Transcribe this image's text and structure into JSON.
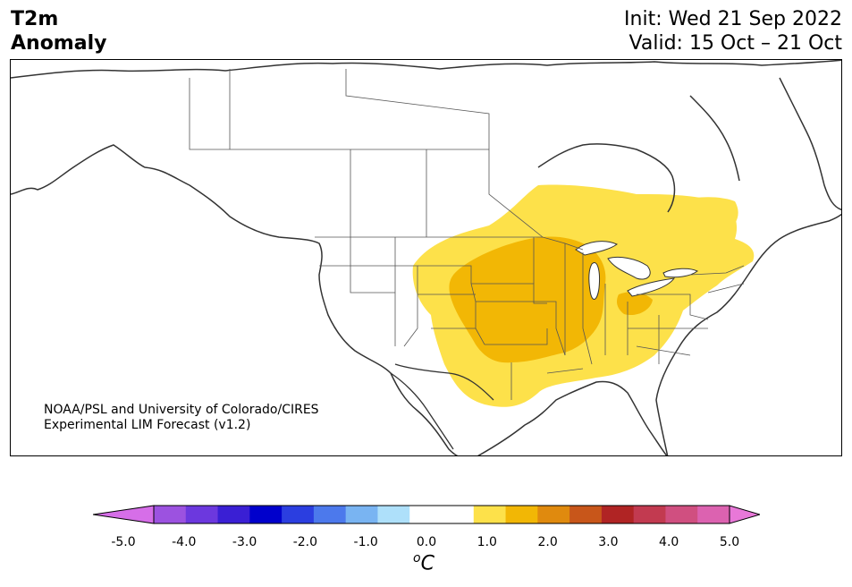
{
  "header": {
    "title_line1": "T2m",
    "title_line2": "Anomaly",
    "init": "Init: Wed 21 Sep 2022",
    "valid": "Valid: 15 Oct – 21 Oct"
  },
  "credit": {
    "line1": "NOAA/PSL and University of Colorado/CIRES",
    "line2": "Experimental LIM Forecast (v1.2)"
  },
  "colorbar": {
    "ticks": [
      "-5.0",
      "-4.0",
      "-3.0",
      "-2.0",
      "-1.0",
      "0.0",
      "1.0",
      "2.0",
      "3.0",
      "4.0",
      "5.0"
    ],
    "unit_main": "C",
    "unit_sup": "o",
    "colors": [
      "#d66ee8",
      "#9c52e0",
      "#6c38de",
      "#3a1fd4",
      "#0000cc",
      "#2b3ee0",
      "#4c79ec",
      "#79b4f2",
      "#aee0fa",
      "#ffffff",
      "#ffffff",
      "#fde14a",
      "#f2b705",
      "#e08a0e",
      "#c8561a",
      "#b02424",
      "#c23a50",
      "#d04f80",
      "#dc62b0",
      "#e878d8"
    ]
  },
  "map": {
    "anomaly_colors": {
      "light": "#fde14a",
      "medium": "#f2b705",
      "white": "#ffffff"
    },
    "line_color": "#333333"
  }
}
